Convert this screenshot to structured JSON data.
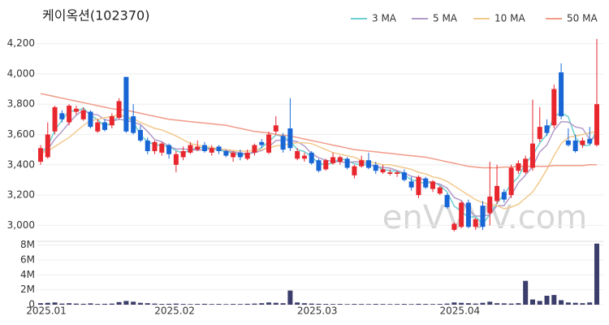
{
  "chart_data": [
    {
      "type": "candlestick",
      "title": "케이옥션(102370)",
      "watermark": "enVVVV.com",
      "categories": [
        "2025.01",
        null,
        null,
        null,
        null,
        null,
        null,
        null,
        null,
        null,
        null,
        null,
        null,
        null,
        null,
        null,
        null,
        null,
        "2025.02",
        null,
        null,
        null,
        null,
        null,
        null,
        null,
        null,
        null,
        null,
        null,
        null,
        null,
        null,
        null,
        null,
        null,
        null,
        null,
        "2025.03",
        null,
        null,
        null,
        null,
        null,
        null,
        null,
        null,
        null,
        null,
        null,
        null,
        null,
        null,
        null,
        null,
        null,
        null,
        null,
        "2025.04",
        null,
        null,
        null,
        null,
        null,
        null,
        null,
        null,
        null,
        null,
        null,
        null,
        null,
        null,
        null,
        null,
        null,
        null,
        null,
        null
      ],
      "open": [
        3420,
        3450,
        3620,
        3740,
        3680,
        3750,
        3700,
        3750,
        3620,
        3680,
        3660,
        3710,
        3980,
        3720,
        3630,
        3560,
        3490,
        3480,
        3530,
        3400,
        3450,
        3480,
        3500,
        3530,
        3480,
        3520,
        3490,
        3450,
        3480,
        3440,
        3480,
        3550,
        3480,
        3620,
        3590,
        3640,
        3440,
        3440,
        3480,
        3430,
        3370,
        3410,
        3420,
        3440,
        3330,
        3390,
        3430,
        3400,
        3350,
        3340,
        3340,
        3350,
        3290,
        3200,
        3310,
        3240,
        3210,
        3200,
        2970,
        2990,
        3150,
        2990,
        3130,
        3080,
        3160,
        3220,
        3200,
        3360,
        3350,
        3380,
        3570,
        3660,
        3660,
        4010,
        3560,
        3560,
        3530,
        3570,
        3530
      ],
      "high": [
        3530,
        3680,
        3790,
        3760,
        3800,
        3790,
        3780,
        3760,
        3700,
        3700,
        3740,
        3840,
        3980,
        3800,
        3660,
        3580,
        3560,
        3550,
        3540,
        3490,
        3520,
        3550,
        3560,
        3550,
        3530,
        3530,
        3500,
        3490,
        3500,
        3500,
        3540,
        3570,
        3620,
        3720,
        3610,
        3840,
        3510,
        3480,
        3490,
        3440,
        3440,
        3480,
        3460,
        3450,
        3400,
        3460,
        3480,
        3420,
        3400,
        3370,
        3360,
        3370,
        3320,
        3330,
        3320,
        3300,
        3260,
        3210,
        3020,
        3160,
        3170,
        3050,
        3160,
        3420,
        3400,
        3240,
        3400,
        3430,
        3460,
        3830,
        3780,
        3700,
        3930,
        4070,
        3640,
        3600,
        3580,
        3650,
        4230
      ],
      "low": [
        3400,
        3440,
        3600,
        3680,
        3660,
        3730,
        3690,
        3640,
        3610,
        3620,
        3640,
        3700,
        3610,
        3600,
        3550,
        3470,
        3470,
        3460,
        3440,
        3350,
        3430,
        3470,
        3490,
        3480,
        3460,
        3470,
        3450,
        3420,
        3430,
        3430,
        3460,
        3510,
        3470,
        3600,
        3480,
        3490,
        3430,
        3420,
        3400,
        3350,
        3360,
        3400,
        3400,
        3370,
        3310,
        3380,
        3370,
        3340,
        3340,
        3330,
        3320,
        3290,
        3230,
        3180,
        3240,
        3220,
        3200,
        3110,
        2960,
        2980,
        2980,
        2970,
        2970,
        3000,
        3140,
        3150,
        3180,
        3340,
        3340,
        3360,
        3550,
        3590,
        3640,
        3700,
        3520,
        3480,
        3510,
        3530,
        3520
      ],
      "close": [
        3510,
        3600,
        3780,
        3700,
        3790,
        3770,
        3760,
        3650,
        3680,
        3630,
        3720,
        3820,
        3620,
        3610,
        3560,
        3490,
        3550,
        3540,
        3470,
        3470,
        3490,
        3530,
        3520,
        3490,
        3510,
        3490,
        3460,
        3480,
        3450,
        3480,
        3530,
        3530,
        3600,
        3660,
        3500,
        3510,
        3490,
        3460,
        3410,
        3360,
        3430,
        3450,
        3450,
        3380,
        3390,
        3430,
        3380,
        3360,
        3370,
        3350,
        3350,
        3300,
        3250,
        3320,
        3250,
        3290,
        3250,
        3120,
        3010,
        3150,
        2990,
        3040,
        2990,
        3190,
        3260,
        3170,
        3380,
        3410,
        3440,
        3540,
        3650,
        3610,
        3900,
        3720,
        3530,
        3490,
        3560,
        3540,
        3800
      ],
      "up_color": "#e8262d",
      "down_color": "#1866d6",
      "series": [
        {
          "name": "3 MA",
          "color": "#6ecfd0",
          "values": [
            3480,
            3520,
            3630,
            3693,
            3757,
            3753,
            3773,
            3727,
            3697,
            3653,
            3677,
            3723,
            3720,
            3683,
            3597,
            3553,
            3533,
            3527,
            3520,
            3493,
            3477,
            3497,
            3513,
            3513,
            3507,
            3497,
            3487,
            3477,
            3463,
            3470,
            3487,
            3513,
            3553,
            3597,
            3587,
            3557,
            3500,
            3487,
            3453,
            3410,
            3400,
            3413,
            3443,
            3427,
            3407,
            3400,
            3400,
            3390,
            3370,
            3360,
            3357,
            3333,
            3300,
            3290,
            3273,
            3287,
            3263,
            3220,
            3127,
            3093,
            3050,
            3060,
            3007,
            3073,
            3147,
            3207,
            3270,
            3320,
            3410,
            3463,
            3543,
            3600,
            3720,
            3743,
            3717,
            3580,
            3527,
            3530,
            3633
          ]
        },
        {
          "name": "5 MA",
          "color": "#b39bc8",
          "values": [
            3470,
            3500,
            3570,
            3620,
            3676,
            3728,
            3760,
            3734,
            3730,
            3698,
            3688,
            3700,
            3694,
            3680,
            3666,
            3620,
            3566,
            3552,
            3522,
            3504,
            3504,
            3500,
            3496,
            3500,
            3508,
            3508,
            3494,
            3486,
            3478,
            3472,
            3480,
            3494,
            3518,
            3560,
            3564,
            3560,
            3552,
            3524,
            3474,
            3446,
            3430,
            3422,
            3420,
            3414,
            3420,
            3420,
            3406,
            3388,
            3382,
            3378,
            3362,
            3346,
            3324,
            3314,
            3294,
            3282,
            3272,
            3246,
            3184,
            3164,
            3104,
            3062,
            3060,
            3072,
            3130,
            3130,
            3198,
            3282,
            3332,
            3388,
            3484,
            3530,
            3628,
            3684,
            3682,
            3650,
            3640,
            3568,
            3584
          ]
        },
        {
          "name": "10 MA",
          "color": "#f2c98c",
          "values": [
            3480,
            3490,
            3520,
            3550,
            3580,
            3620,
            3660,
            3690,
            3700,
            3710,
            3720,
            3730,
            3715,
            3705,
            3680,
            3660,
            3640,
            3630,
            3610,
            3590,
            3565,
            3540,
            3530,
            3520,
            3515,
            3505,
            3500,
            3495,
            3490,
            3490,
            3495,
            3500,
            3510,
            3525,
            3530,
            3540,
            3545,
            3545,
            3540,
            3520,
            3500,
            3480,
            3470,
            3460,
            3450,
            3430,
            3420,
            3410,
            3400,
            3400,
            3390,
            3380,
            3370,
            3350,
            3340,
            3320,
            3310,
            3290,
            3260,
            3230,
            3200,
            3170,
            3150,
            3140,
            3130,
            3110,
            3120,
            3140,
            3180,
            3220,
            3290,
            3370,
            3460,
            3540,
            3580,
            3590,
            3600,
            3610,
            3620
          ]
        },
        {
          "name": "50 MA",
          "color": "#f19b88",
          "values": [
            3870,
            3860,
            3850,
            3840,
            3830,
            3820,
            3810,
            3800,
            3790,
            3780,
            3770,
            3765,
            3760,
            3750,
            3740,
            3730,
            3720,
            3710,
            3700,
            3695,
            3690,
            3685,
            3680,
            3675,
            3670,
            3665,
            3660,
            3650,
            3640,
            3630,
            3620,
            3615,
            3610,
            3600,
            3595,
            3590,
            3580,
            3570,
            3560,
            3550,
            3540,
            3530,
            3520,
            3510,
            3500,
            3495,
            3490,
            3485,
            3480,
            3475,
            3470,
            3465,
            3460,
            3455,
            3450,
            3440,
            3430,
            3420,
            3410,
            3400,
            3390,
            3385,
            3380,
            3380,
            3380,
            3385,
            3385,
            3390,
            3390,
            3390,
            3390,
            3390,
            3395,
            3395,
            3395,
            3395,
            3395,
            3400,
            3400
          ]
        }
      ],
      "ylim": [
        2900,
        4300
      ],
      "yticks": [
        {
          "value": 3000,
          "label": "3,000"
        },
        {
          "value": 3200,
          "label": "3,200"
        },
        {
          "value": 3400,
          "label": "3,400"
        },
        {
          "value": 3600,
          "label": "3,600"
        },
        {
          "value": 3800,
          "label": "3,800"
        },
        {
          "value": 4000,
          "label": "4,000"
        },
        {
          "value": 4200,
          "label": "4,200"
        }
      ],
      "grid": true,
      "legend": "top-right"
    },
    {
      "type": "bar",
      "color": "#3b3d6b",
      "values": [
        200000,
        250000,
        300000,
        150000,
        200000,
        150000,
        120000,
        180000,
        100000,
        120000,
        150000,
        350000,
        500000,
        400000,
        250000,
        200000,
        150000,
        100000,
        120000,
        150000,
        100000,
        80000,
        100000,
        120000,
        90000,
        100000,
        80000,
        100000,
        90000,
        120000,
        150000,
        200000,
        300000,
        250000,
        200000,
        1900000,
        300000,
        200000,
        150000,
        120000,
        100000,
        90000,
        100000,
        80000,
        100000,
        90000,
        80000,
        100000,
        90000,
        80000,
        90000,
        100000,
        80000,
        120000,
        100000,
        90000,
        100000,
        150000,
        300000,
        250000,
        200000,
        150000,
        250000,
        400000,
        200000,
        180000,
        150000,
        200000,
        3200000,
        700000,
        500000,
        1200000,
        1300000,
        600000,
        300000,
        250000,
        200000,
        300000,
        8200000
      ],
      "ylim": [
        0,
        8400000
      ],
      "yticks": [
        {
          "value": 0,
          "label": "0"
        },
        {
          "value": 2000000,
          "label": "2M"
        },
        {
          "value": 4000000,
          "label": "4M"
        },
        {
          "value": 6000000,
          "label": "6M"
        },
        {
          "value": 8000000,
          "label": "8M"
        }
      ],
      "grid": true
    }
  ]
}
